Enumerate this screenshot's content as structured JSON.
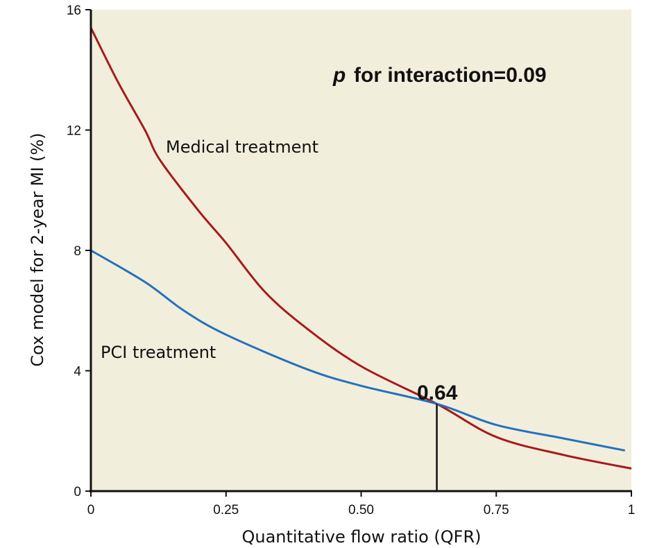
{
  "chart_data": {
    "type": "line",
    "title": "",
    "xlabel": "Quantitative flow ratio (QFR)",
    "ylabel": "Cox model for 2-year MI (%)",
    "xlim": [
      0,
      1
    ],
    "ylim": [
      0,
      16
    ],
    "x_ticks": [
      0,
      0.25,
      0.5,
      0.75,
      1
    ],
    "x_tick_labels": [
      "0",
      "0.25",
      "0.50",
      "0.75",
      "1"
    ],
    "y_ticks": [
      0,
      4,
      8,
      12,
      16
    ],
    "y_tick_labels": [
      "0",
      "4",
      "8",
      "12",
      "16"
    ],
    "grid": false,
    "background": "#f2eedc",
    "series": [
      {
        "name": "Medical treatment",
        "color": "#a8191c",
        "x": [
          0,
          0.05,
          0.1,
          0.128,
          0.2,
          0.25,
          0.321,
          0.4,
          0.5,
          0.64,
          0.75,
          0.875,
          1
        ],
        "y": [
          15.4,
          13.6,
          12.0,
          11.0,
          9.3,
          8.25,
          6.64,
          5.4,
          4.15,
          2.9,
          1.8,
          1.2,
          0.75
        ]
      },
      {
        "name": "PCI treatment",
        "color": "#2271c1",
        "x": [
          0,
          0.1,
          0.172,
          0.25,
          0.4,
          0.5,
          0.64,
          0.75,
          0.875,
          0.988
        ],
        "y": [
          8.0,
          6.95,
          6.0,
          5.2,
          4.05,
          3.5,
          2.9,
          2.2,
          1.75,
          1.35
        ]
      }
    ],
    "annotations": {
      "interaction_prefix": "p",
      "interaction_text": "for interaction=0.09",
      "crossover_label": "0.64",
      "crossover_x": 0.64,
      "crossover_y": 2.9
    }
  }
}
